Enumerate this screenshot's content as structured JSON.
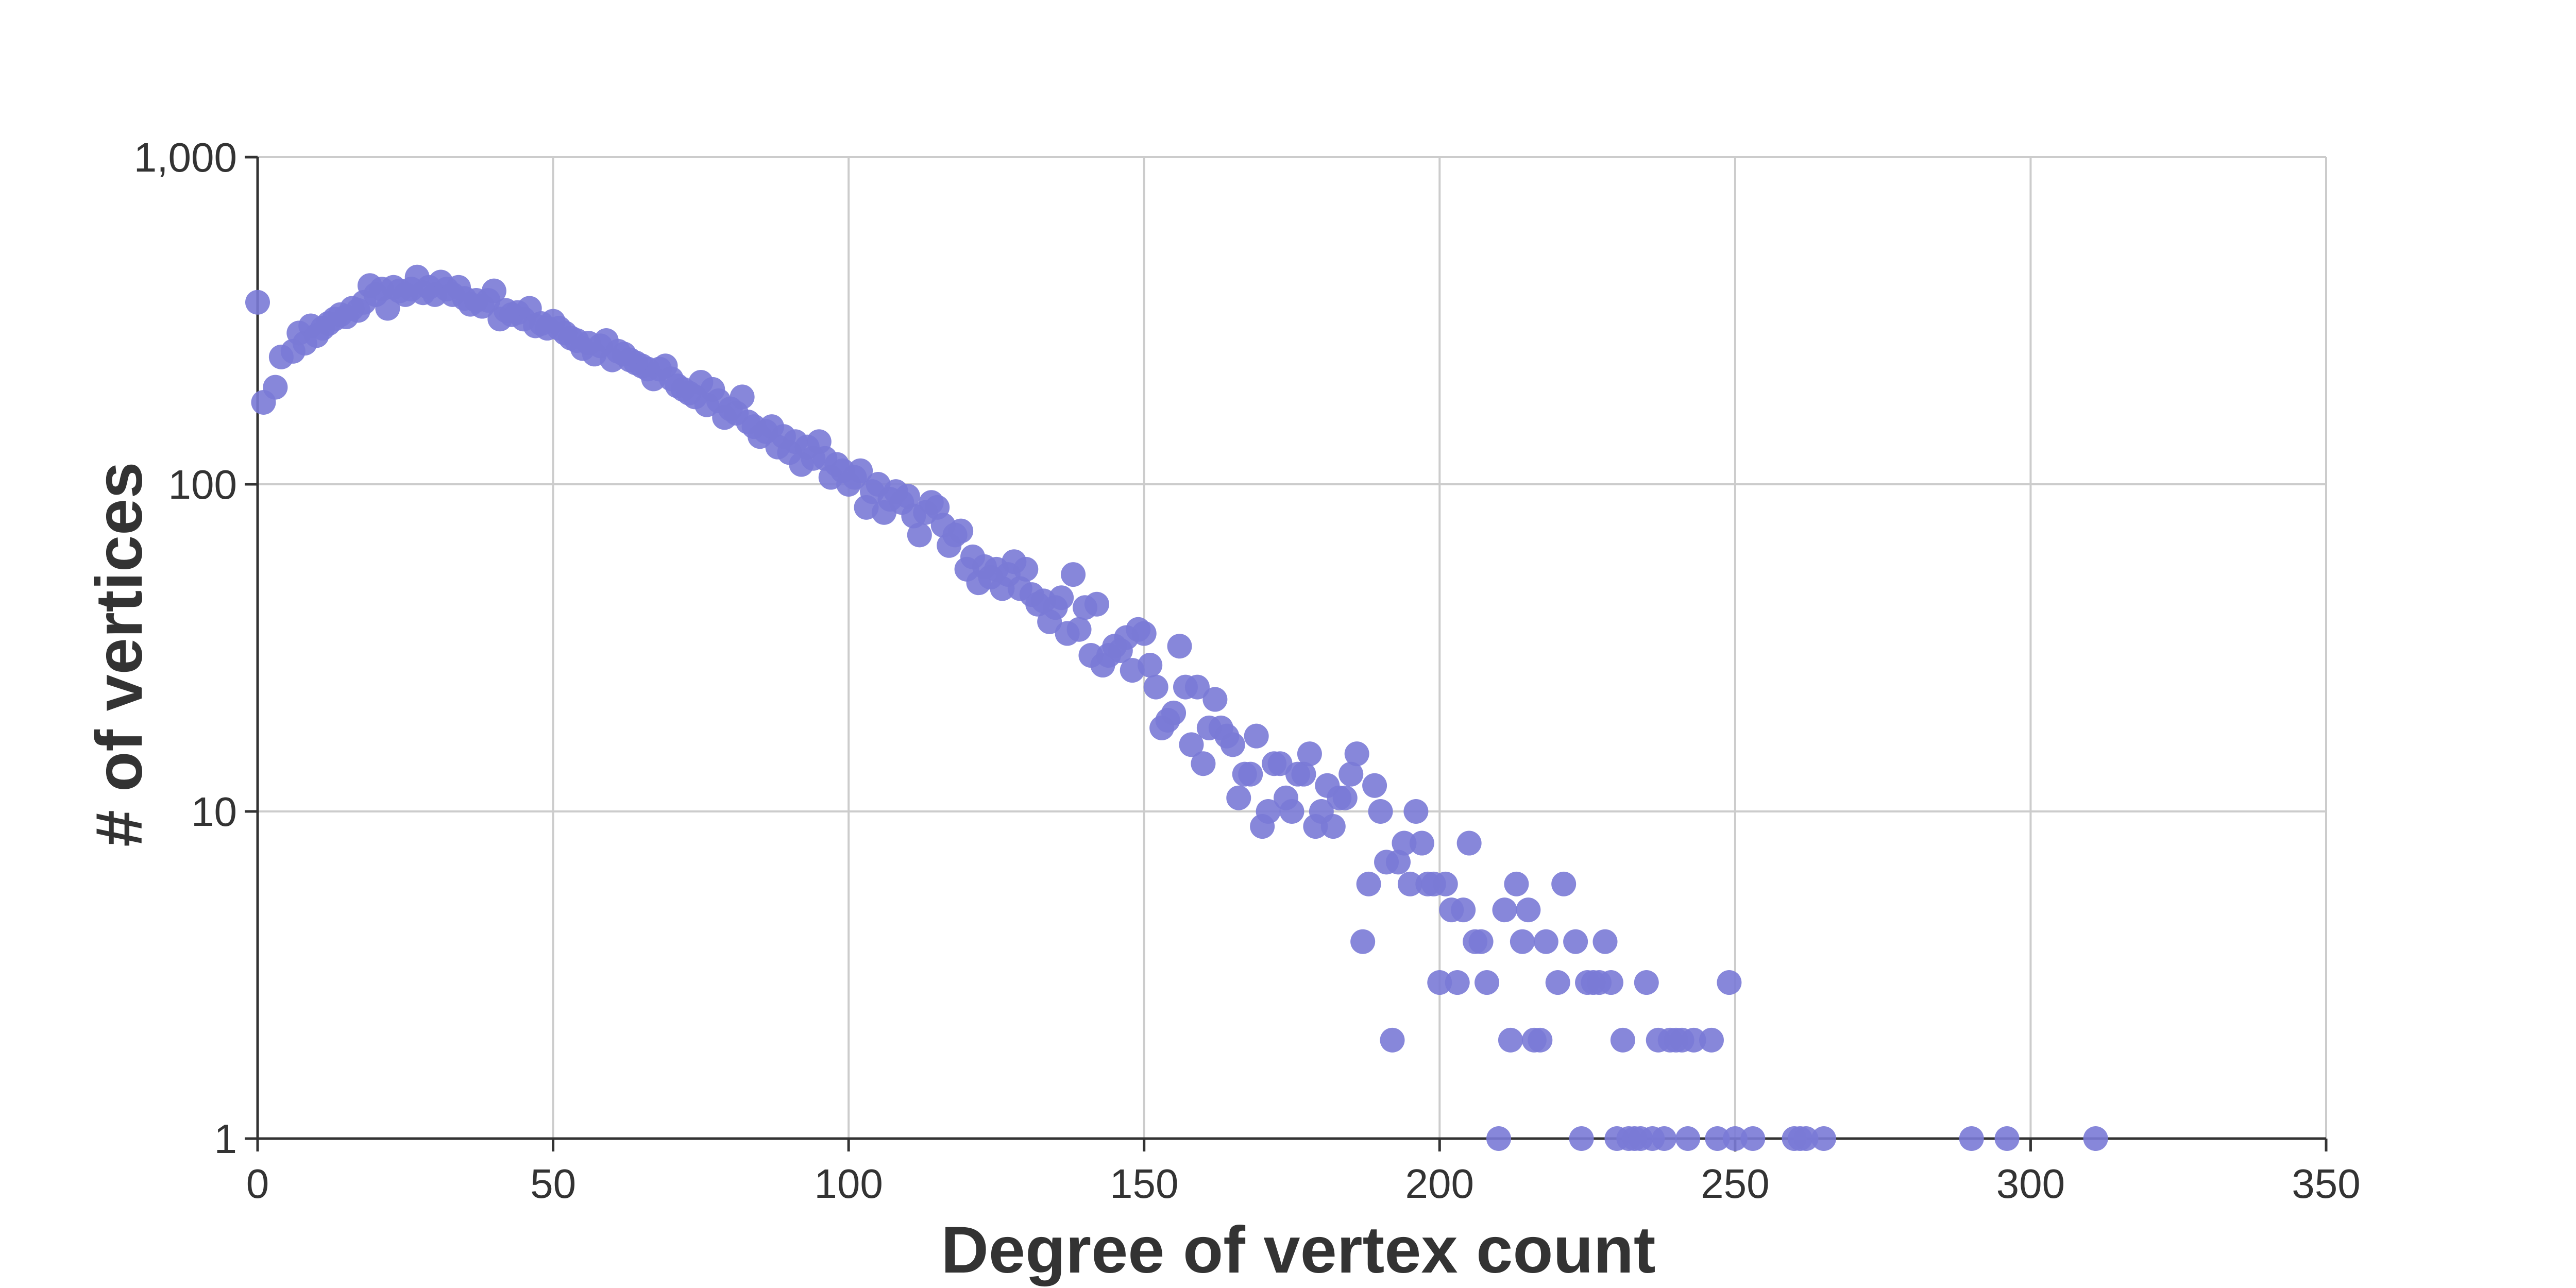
{
  "chart_data": {
    "type": "scatter",
    "title": "",
    "xlabel": "Degree of vertex count",
    "ylabel": "# of vertices",
    "xlim": [
      0,
      350
    ],
    "ylim": [
      1,
      1000
    ],
    "yscale": "log",
    "grid": true,
    "x_ticks": [
      0,
      50,
      100,
      150,
      200,
      250,
      300,
      350
    ],
    "x_tick_labels": [
      "0",
      "50",
      "100",
      "150",
      "200",
      "250",
      "300",
      "350"
    ],
    "y_ticks": [
      1,
      10,
      100,
      1000
    ],
    "y_tick_labels": [
      "1",
      "10",
      "100",
      "1,000"
    ],
    "colors": {
      "points": "#7a7ad6",
      "axis": "#333333",
      "grid": "#cccccc",
      "text": "#333333"
    },
    "points": [
      [
        0,
        360
      ],
      [
        1,
        178
      ],
      [
        3,
        198
      ],
      [
        4,
        245
      ],
      [
        6,
        255
      ],
      [
        7,
        290
      ],
      [
        8,
        270
      ],
      [
        9,
        305
      ],
      [
        10,
        285
      ],
      [
        11,
        300
      ],
      [
        12,
        310
      ],
      [
        13,
        320
      ],
      [
        14,
        330
      ],
      [
        15,
        325
      ],
      [
        16,
        345
      ],
      [
        17,
        340
      ],
      [
        18,
        360
      ],
      [
        19,
        405
      ],
      [
        20,
        380
      ],
      [
        21,
        395
      ],
      [
        22,
        345
      ],
      [
        23,
        400
      ],
      [
        24,
        390
      ],
      [
        25,
        380
      ],
      [
        26,
        395
      ],
      [
        27,
        430
      ],
      [
        28,
        385
      ],
      [
        29,
        400
      ],
      [
        30,
        380
      ],
      [
        31,
        415
      ],
      [
        32,
        395
      ],
      [
        33,
        380
      ],
      [
        34,
        400
      ],
      [
        35,
        370
      ],
      [
        36,
        355
      ],
      [
        37,
        365
      ],
      [
        38,
        350
      ],
      [
        39,
        365
      ],
      [
        40,
        390
      ],
      [
        41,
        320
      ],
      [
        42,
        340
      ],
      [
        43,
        330
      ],
      [
        44,
        335
      ],
      [
        45,
        320
      ],
      [
        46,
        345
      ],
      [
        47,
        305
      ],
      [
        48,
        310
      ],
      [
        49,
        300
      ],
      [
        50,
        315
      ],
      [
        51,
        300
      ],
      [
        52,
        290
      ],
      [
        53,
        280
      ],
      [
        54,
        275
      ],
      [
        55,
        260
      ],
      [
        56,
        270
      ],
      [
        57,
        250
      ],
      [
        58,
        265
      ],
      [
        59,
        275
      ],
      [
        60,
        240
      ],
      [
        61,
        255
      ],
      [
        62,
        250
      ],
      [
        63,
        240
      ],
      [
        64,
        235
      ],
      [
        65,
        230
      ],
      [
        66,
        225
      ],
      [
        67,
        210
      ],
      [
        68,
        225
      ],
      [
        69,
        230
      ],
      [
        70,
        210
      ],
      [
        71,
        200
      ],
      [
        72,
        195
      ],
      [
        73,
        190
      ],
      [
        74,
        185
      ],
      [
        75,
        205
      ],
      [
        76,
        175
      ],
      [
        77,
        195
      ],
      [
        78,
        180
      ],
      [
        79,
        160
      ],
      [
        80,
        170
      ],
      [
        81,
        165
      ],
      [
        82,
        185
      ],
      [
        83,
        155
      ],
      [
        84,
        150
      ],
      [
        85,
        140
      ],
      [
        86,
        145
      ],
      [
        87,
        150
      ],
      [
        88,
        130
      ],
      [
        89,
        140
      ],
      [
        90,
        125
      ],
      [
        91,
        135
      ],
      [
        92,
        115
      ],
      [
        93,
        130
      ],
      [
        94,
        120
      ],
      [
        95,
        135
      ],
      [
        96,
        120
      ],
      [
        97,
        105
      ],
      [
        98,
        115
      ],
      [
        99,
        110
      ],
      [
        100,
        100
      ],
      [
        101,
        105
      ],
      [
        102,
        110
      ],
      [
        103,
        85
      ],
      [
        104,
        95
      ],
      [
        105,
        100
      ],
      [
        106,
        82
      ],
      [
        107,
        90
      ],
      [
        108,
        95
      ],
      [
        109,
        88
      ],
      [
        110,
        92
      ],
      [
        111,
        80
      ],
      [
        112,
        70
      ],
      [
        113,
        82
      ],
      [
        114,
        88
      ],
      [
        115,
        85
      ],
      [
        116,
        75
      ],
      [
        117,
        65
      ],
      [
        118,
        70
      ],
      [
        119,
        72
      ],
      [
        120,
        55
      ],
      [
        121,
        60
      ],
      [
        122,
        50
      ],
      [
        123,
        56
      ],
      [
        124,
        52
      ],
      [
        125,
        55
      ],
      [
        126,
        48
      ],
      [
        127,
        53
      ],
      [
        128,
        58
      ],
      [
        129,
        48
      ],
      [
        130,
        55
      ],
      [
        131,
        46
      ],
      [
        132,
        43
      ],
      [
        133,
        44
      ],
      [
        134,
        38
      ],
      [
        135,
        42
      ],
      [
        136,
        45
      ],
      [
        137,
        35
      ],
      [
        138,
        53
      ],
      [
        139,
        36
      ],
      [
        140,
        42
      ],
      [
        141,
        30
      ],
      [
        142,
        43
      ],
      [
        143,
        28
      ],
      [
        144,
        30
      ],
      [
        145,
        32
      ],
      [
        146,
        31
      ],
      [
        147,
        34
      ],
      [
        148,
        27
      ],
      [
        149,
        36
      ],
      [
        150,
        35
      ],
      [
        151,
        28
      ],
      [
        152,
        24
      ],
      [
        153,
        18
      ],
      [
        154,
        19
      ],
      [
        155,
        20
      ],
      [
        156,
        32
      ],
      [
        157,
        24
      ],
      [
        158,
        16
      ],
      [
        159,
        24
      ],
      [
        160,
        14
      ],
      [
        161,
        18
      ],
      [
        162,
        22
      ],
      [
        163,
        18
      ],
      [
        164,
        17
      ],
      [
        165,
        16
      ],
      [
        166,
        11
      ],
      [
        167,
        13
      ],
      [
        168,
        13
      ],
      [
        169,
        17
      ],
      [
        170,
        9
      ],
      [
        171,
        10
      ],
      [
        172,
        14
      ],
      [
        173,
        14
      ],
      [
        174,
        11
      ],
      [
        175,
        10
      ],
      [
        176,
        13
      ],
      [
        177,
        13
      ],
      [
        178,
        15
      ],
      [
        179,
        9
      ],
      [
        180,
        10
      ],
      [
        181,
        12
      ],
      [
        182,
        9
      ],
      [
        183,
        11
      ],
      [
        184,
        11
      ],
      [
        185,
        13
      ],
      [
        186,
        15
      ],
      [
        187,
        4
      ],
      [
        188,
        6
      ],
      [
        189,
        12
      ],
      [
        190,
        10
      ],
      [
        191,
        7
      ],
      [
        192,
        2
      ],
      [
        193,
        7
      ],
      [
        194,
        8
      ],
      [
        195,
        6
      ],
      [
        196,
        10
      ],
      [
        197,
        8
      ],
      [
        198,
        6
      ],
      [
        199,
        6
      ],
      [
        200,
        3
      ],
      [
        201,
        6
      ],
      [
        202,
        5
      ],
      [
        203,
        3
      ],
      [
        204,
        5
      ],
      [
        205,
        8
      ],
      [
        206,
        4
      ],
      [
        207,
        4
      ],
      [
        208,
        3
      ],
      [
        210,
        1
      ],
      [
        211,
        5
      ],
      [
        212,
        2
      ],
      [
        213,
        6
      ],
      [
        214,
        4
      ],
      [
        215,
        5
      ],
      [
        216,
        2
      ],
      [
        217,
        2
      ],
      [
        218,
        4
      ],
      [
        220,
        3
      ],
      [
        221,
        6
      ],
      [
        223,
        4
      ],
      [
        224,
        1
      ],
      [
        225,
        3
      ],
      [
        226,
        3
      ],
      [
        227,
        3
      ],
      [
        228,
        4
      ],
      [
        229,
        3
      ],
      [
        230,
        1
      ],
      [
        231,
        2
      ],
      [
        232,
        1
      ],
      [
        233,
        1
      ],
      [
        234,
        1
      ],
      [
        235,
        3
      ],
      [
        236,
        1
      ],
      [
        237,
        2
      ],
      [
        238,
        1
      ],
      [
        239,
        2
      ],
      [
        240,
        2
      ],
      [
        241,
        2
      ],
      [
        242,
        1
      ],
      [
        243,
        2
      ],
      [
        246,
        2
      ],
      [
        247,
        1
      ],
      [
        249,
        3
      ],
      [
        250,
        1
      ],
      [
        253,
        1
      ],
      [
        260,
        1
      ],
      [
        261,
        1
      ],
      [
        262,
        1
      ],
      [
        265,
        1
      ],
      [
        290,
        1
      ],
      [
        296,
        1
      ],
      [
        311,
        1
      ]
    ]
  }
}
